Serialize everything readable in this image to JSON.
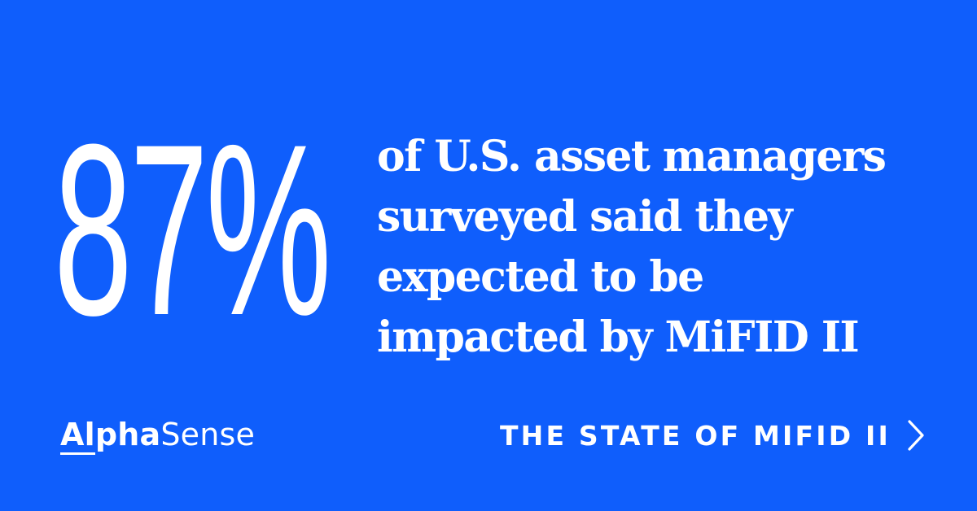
{
  "stat": {
    "value": "87%"
  },
  "statement": {
    "lines": [
      "of U.S. asset managers",
      "surveyed said they",
      "expected to be",
      "impacted by MiFID II"
    ]
  },
  "logo": {
    "part_underlined": "Al",
    "part_bold": "pha",
    "part_regular": "Sense"
  },
  "cta": {
    "label": "THE STATE OF MIFID II",
    "icon": "chevron-right-icon"
  },
  "colors": {
    "background": "#0f5efc",
    "text": "#ffffff"
  }
}
